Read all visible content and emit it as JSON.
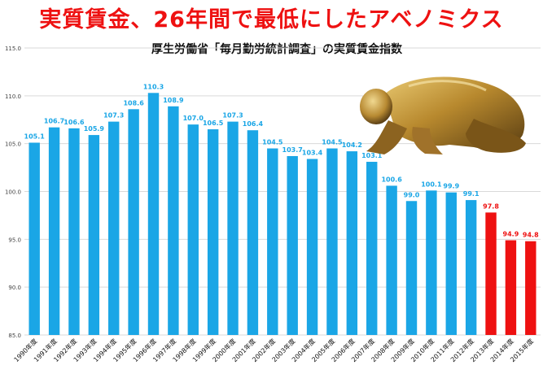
{
  "headline": "実質賃金、26年間で最低にしたアベノミクス",
  "colors": {
    "headline": "#ee1111",
    "normal_bar": "#1aa6e6",
    "highlight_bar": "#ee1111",
    "grid": "#d9d9d9"
  },
  "chart_data": {
    "type": "bar",
    "title": "厚生労働省「毎月勤労統計調査」の実質賃金指数",
    "xlabel": "",
    "ylabel": "",
    "ylim": [
      85.0,
      115.0
    ],
    "yticks": [
      "85.0",
      "90.0",
      "95.0",
      "100.0",
      "105.0",
      "110.0",
      "115.0"
    ],
    "grid": true,
    "legend": "none",
    "categories": [
      "1990年度",
      "1991年度",
      "1992年度",
      "1993年度",
      "1994年度",
      "1995年度",
      "1996年度",
      "1997年度",
      "1998年度",
      "1999年度",
      "2000年度",
      "2001年度",
      "2002年度",
      "2003年度",
      "2004年度",
      "2005年度",
      "2006年度",
      "2007年度",
      "2008年度",
      "2009年度",
      "2010年度",
      "2011年度",
      "2012年度",
      "2013年度",
      "2014年度",
      "2015年度"
    ],
    "values": [
      105.1,
      106.7,
      106.6,
      105.9,
      107.3,
      108.6,
      110.3,
      108.9,
      107.0,
      106.5,
      107.3,
      106.4,
      104.5,
      103.7,
      103.4,
      104.5,
      104.2,
      103.1,
      100.6,
      99.0,
      100.1,
      99.9,
      99.1,
      97.8,
      94.9,
      94.8
    ],
    "value_labels": [
      "105.1",
      "106.7",
      "106.6",
      "105.9",
      "107.3",
      "108.6",
      "110.3",
      "108.9",
      "107.0",
      "106.5",
      "107.3",
      "106.4",
      "104.5",
      "103.7",
      "103.4",
      "104.5",
      "104.2",
      "103.1",
      "100.6",
      "99.0",
      "100.1",
      "99.9",
      "99.1",
      "97.8",
      "94.9",
      "94.8"
    ],
    "highlight_from": "2013年度"
  }
}
